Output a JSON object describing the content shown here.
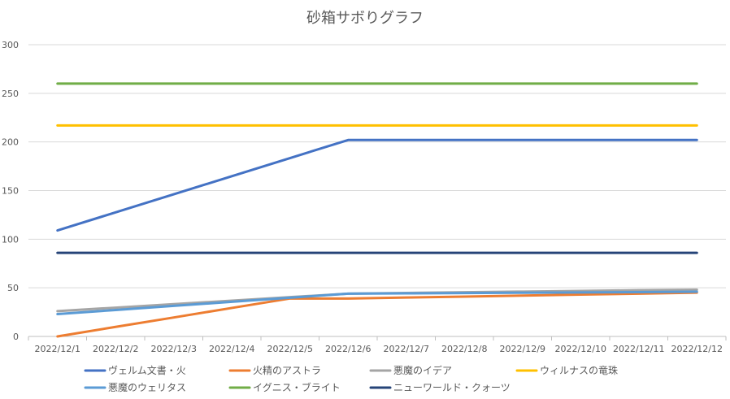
{
  "chart_data": {
    "type": "line",
    "title": "砂箱サボりグラフ",
    "xlabel": "",
    "ylabel": "",
    "ylim": [
      0,
      300
    ],
    "yticks": [
      0,
      50,
      100,
      150,
      200,
      250,
      300
    ],
    "grid": true,
    "legend_position": "bottom",
    "categories": [
      "2022/12/1",
      "2022/12/2",
      "2022/12/3",
      "2022/12/4",
      "2022/12/5",
      "2022/12/6",
      "2022/12/7",
      "2022/12/8",
      "2022/12/9",
      "2022/12/10",
      "2022/12/11",
      "2022/12/12"
    ],
    "series": [
      {
        "name": "ヴェルム文書・火",
        "color": "#4472C4",
        "values": [
          109,
          127.6,
          146.2,
          164.8,
          183.4,
          202,
          202,
          202,
          202,
          202,
          202,
          202
        ]
      },
      {
        "name": "火精のアストラ",
        "color": "#ED7D31",
        "values": [
          0,
          9.8,
          19.5,
          29.3,
          39,
          39,
          40,
          41,
          42,
          43,
          44,
          45
        ]
      },
      {
        "name": "悪魔のイデア",
        "color": "#A5A5A5",
        "values": [
          26,
          29.6,
          33.2,
          36.8,
          40.4,
          44,
          44.7,
          45.4,
          46.1,
          46.8,
          47.5,
          48
        ]
      },
      {
        "name": "ウィルナスの竜珠",
        "color": "#FFC000",
        "values": [
          217,
          217,
          217,
          217,
          217,
          217,
          217,
          217,
          217,
          217,
          217,
          217
        ]
      },
      {
        "name": "悪魔のウェリタス",
        "color": "#5B9BD5",
        "values": [
          23,
          27.2,
          31.4,
          35.6,
          39.8,
          44,
          44.3,
          44.6,
          44.9,
          45.2,
          45.5,
          46
        ]
      },
      {
        "name": "イグニス・ブライト",
        "color": "#70AD47",
        "values": [
          260,
          260,
          260,
          260,
          260,
          260,
          260,
          260,
          260,
          260,
          260,
          260
        ]
      },
      {
        "name": "ニューワールド・クォーツ",
        "color": "#264478",
        "values": [
          86,
          86,
          86,
          86,
          86,
          86,
          86,
          86,
          86,
          86,
          86,
          86
        ]
      }
    ]
  }
}
